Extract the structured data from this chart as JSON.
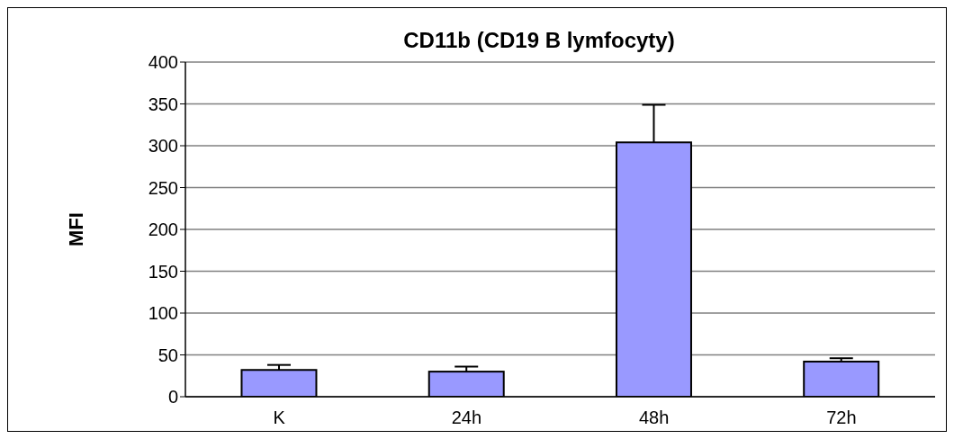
{
  "chart_data": {
    "type": "bar",
    "title": "CD11b (CD19 B lymfocyty)",
    "ylabel": "MFI",
    "categories": [
      "K",
      "24h",
      "48h",
      "72h"
    ],
    "values": [
      32,
      30,
      304,
      42
    ],
    "errors": [
      [
        32,
        38
      ],
      [
        30,
        36
      ],
      [
        304,
        349
      ],
      [
        42,
        46
      ]
    ],
    "color": "#9999ff",
    "ylim": [
      0,
      400
    ],
    "yticks": [
      0,
      50,
      100,
      150,
      200,
      250,
      300,
      350,
      400
    ],
    "grid": "y"
  }
}
